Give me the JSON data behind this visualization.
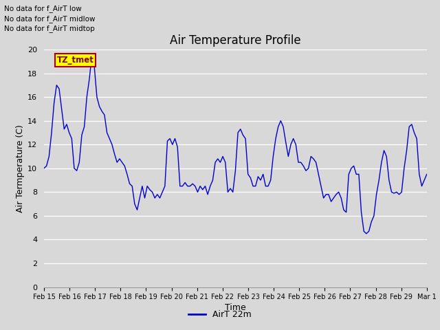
{
  "title": "Air Temperature Profile",
  "xlabel": "Time",
  "ylabel": "Air Termperature (C)",
  "ylim": [
    0,
    20
  ],
  "legend_label": "AirT 22m",
  "line_color": "#0000cc",
  "background_color": "#d8d8d8",
  "plot_bg_color": "#d8d8d8",
  "annotations": [
    "No data for f_AirT low",
    "No data for f_AirT midlow",
    "No data for f_AirT midtop"
  ],
  "tz_label": "TZ_tmet",
  "x_tick_labels": [
    "Feb 15",
    "Feb 16",
    "Feb 17",
    "Feb 18",
    "Feb 19",
    "Feb 20",
    "Feb 21",
    "Feb 22",
    "Feb 23",
    "Feb 24",
    "Feb 25",
    "Feb 26",
    "Feb 27",
    "Feb 28",
    "Feb 29",
    "Mar 1"
  ],
  "temperature_data": [
    10.0,
    10.2,
    11.0,
    13.0,
    15.5,
    17.0,
    16.7,
    15.0,
    13.3,
    13.7,
    13.0,
    12.5,
    10.0,
    9.8,
    10.5,
    12.8,
    13.5,
    16.0,
    17.5,
    19.5,
    18.5,
    16.0,
    15.2,
    14.8,
    14.5,
    13.0,
    12.5,
    12.0,
    11.2,
    10.5,
    10.8,
    10.5,
    10.2,
    9.5,
    8.7,
    8.5,
    7.0,
    6.5,
    7.5,
    8.5,
    7.5,
    8.5,
    8.2,
    8.0,
    7.5,
    7.8,
    7.5,
    8.0,
    8.5,
    12.3,
    12.5,
    12.0,
    12.5,
    11.8,
    8.5,
    8.5,
    8.8,
    8.5,
    8.5,
    8.7,
    8.5,
    8.0,
    8.5,
    8.2,
    8.5,
    7.8,
    8.5,
    9.0,
    10.5,
    10.8,
    10.5,
    11.0,
    10.5,
    8.0,
    8.3,
    8.0,
    9.8,
    13.0,
    13.3,
    12.8,
    12.5,
    9.5,
    9.2,
    8.5,
    8.5,
    9.3,
    9.0,
    9.5,
    8.5,
    8.5,
    9.0,
    11.0,
    12.5,
    13.5,
    14.0,
    13.5,
    12.2,
    11.0,
    12.0,
    12.5,
    12.0,
    10.5,
    10.5,
    10.2,
    9.8,
    10.0,
    11.0,
    10.8,
    10.5,
    9.5,
    8.5,
    7.5,
    7.8,
    7.8,
    7.2,
    7.5,
    7.8,
    8.0,
    7.5,
    6.5,
    6.3,
    9.5,
    10.0,
    10.2,
    9.5,
    9.5,
    6.3,
    4.7,
    4.5,
    4.7,
    5.5,
    6.0,
    7.8,
    9.0,
    10.5,
    11.5,
    11.0,
    9.0,
    8.0,
    7.9,
    8.0,
    7.8,
    8.0,
    10.0,
    11.5,
    13.5,
    13.7,
    13.0,
    12.5,
    9.5,
    8.5,
    9.0,
    9.5
  ],
  "yticks": [
    0,
    2,
    4,
    6,
    8,
    10,
    12,
    14,
    16,
    18,
    20
  ]
}
